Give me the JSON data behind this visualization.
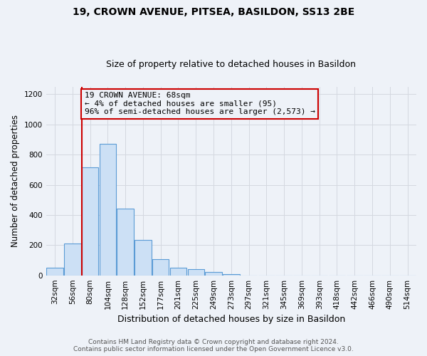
{
  "title": "19, CROWN AVENUE, PITSEA, BASILDON, SS13 2BE",
  "subtitle": "Size of property relative to detached houses in Basildon",
  "xlabel": "Distribution of detached houses by size in Basildon",
  "ylabel": "Number of detached properties",
  "footer_line1": "Contains HM Land Registry data © Crown copyright and database right 2024.",
  "footer_line2": "Contains public sector information licensed under the Open Government Licence v3.0.",
  "annotation_line1": "19 CROWN AVENUE: 68sqm",
  "annotation_line2": "← 4% of detached houses are smaller (95)",
  "annotation_line3": "96% of semi-detached houses are larger (2,573) →",
  "bar_labels": [
    "32sqm",
    "56sqm",
    "80sqm",
    "104sqm",
    "128sqm",
    "152sqm",
    "177sqm",
    "201sqm",
    "225sqm",
    "249sqm",
    "273sqm",
    "297sqm",
    "321sqm",
    "345sqm",
    "369sqm",
    "393sqm",
    "418sqm",
    "442sqm",
    "466sqm",
    "490sqm",
    "514sqm"
  ],
  "bar_values": [
    50,
    210,
    715,
    870,
    440,
    235,
    105,
    50,
    40,
    20,
    10,
    0,
    0,
    0,
    0,
    0,
    0,
    0,
    0,
    0,
    0
  ],
  "bar_color": "#cce0f5",
  "bar_edge_color": "#5b9bd5",
  "marker_color": "#cc0000",
  "ylim": [
    0,
    1250
  ],
  "yticks": [
    0,
    200,
    400,
    600,
    800,
    1000,
    1200
  ],
  "grid_color": "#d4d8e0",
  "annotation_box_edge": "#cc0000",
  "background_color": "#eef2f8",
  "title_fontsize": 10,
  "subtitle_fontsize": 9,
  "ylabel_fontsize": 8.5,
  "xlabel_fontsize": 9,
  "tick_fontsize": 7.5,
  "footer_fontsize": 6.5,
  "footer_color": "#555555"
}
